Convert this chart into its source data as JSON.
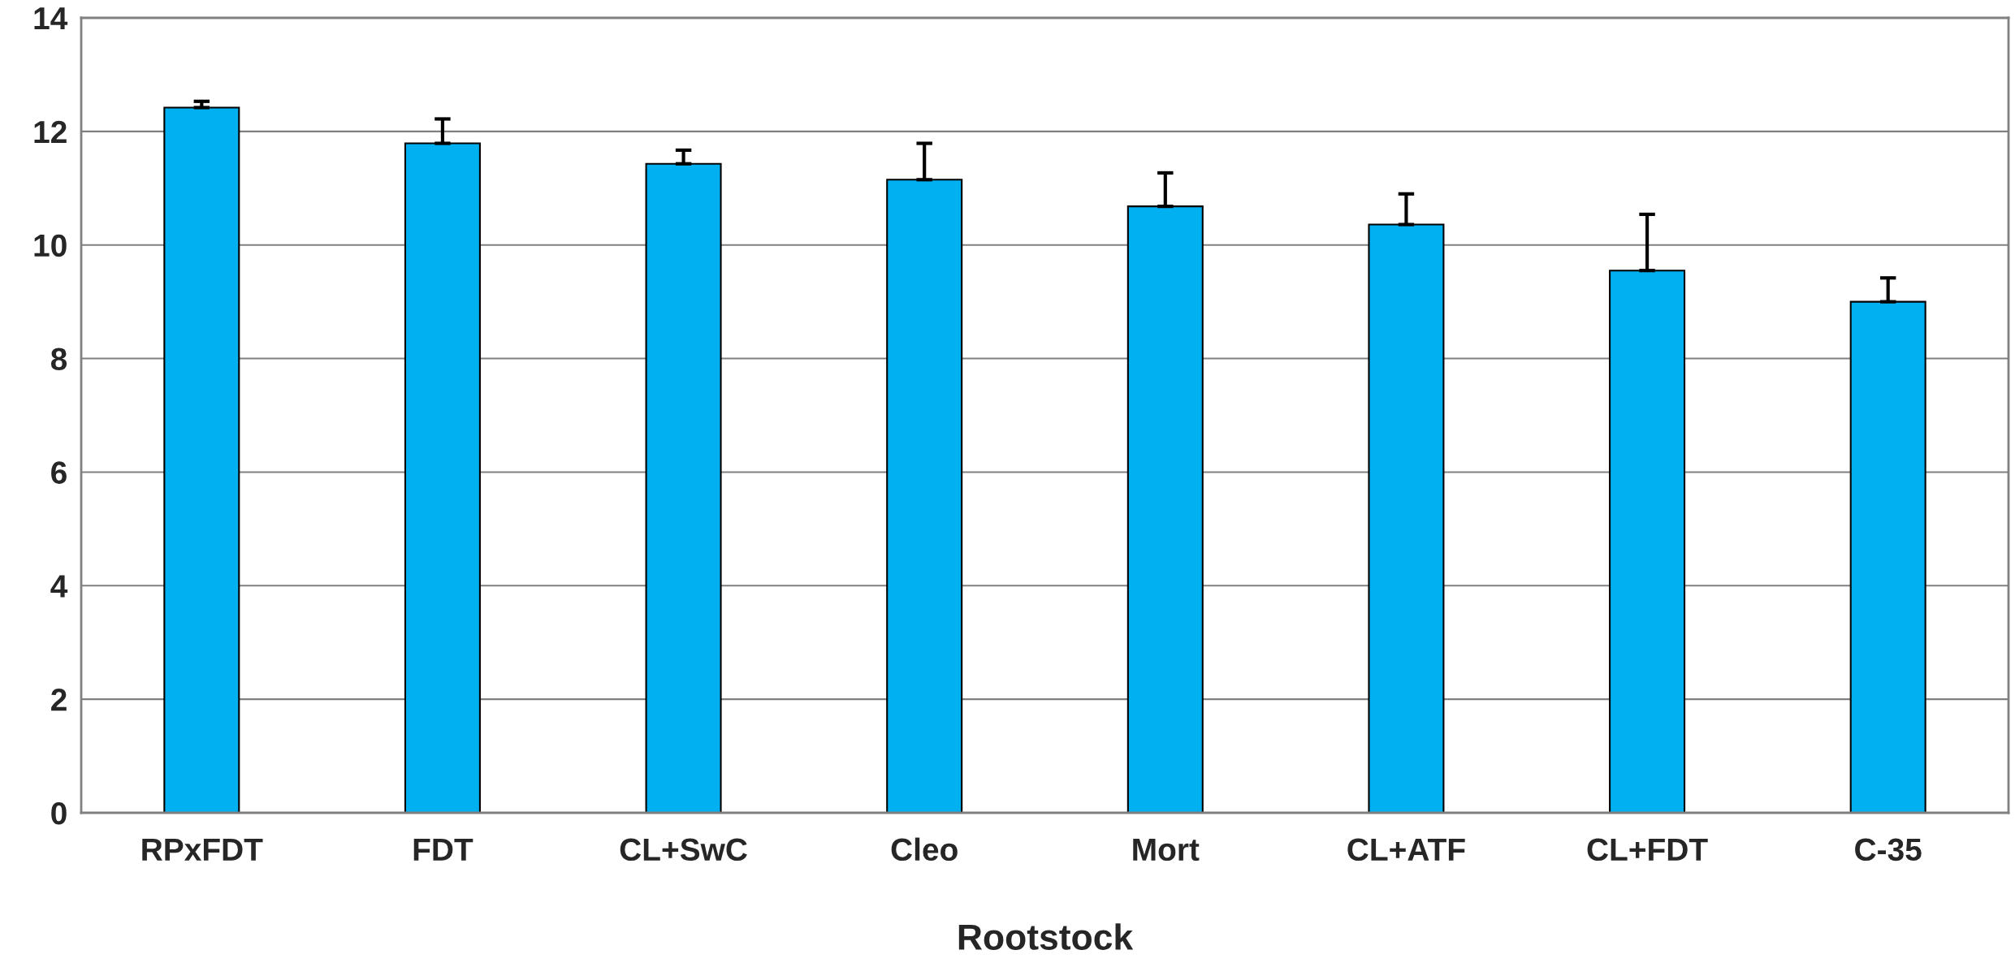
{
  "chart_data": {
    "type": "bar",
    "xlabel": "Rootstock",
    "categories": [
      "RPxFDT",
      "FDT",
      "CL+SwC",
      "Cleo",
      "Mort",
      "CL+ATF",
      "CL+FDT",
      "C-35"
    ],
    "values": [
      12.42,
      11.79,
      11.43,
      11.15,
      10.68,
      10.36,
      9.55,
      9.0
    ],
    "errors": [
      [
        12.42,
        12.53
      ],
      [
        11.79,
        12.22
      ],
      [
        11.43,
        11.67
      ],
      [
        11.15,
        11.79
      ],
      [
        10.68,
        11.27
      ],
      [
        10.36,
        10.9
      ],
      [
        9.55,
        10.54
      ],
      [
        9.0,
        9.42
      ]
    ],
    "color": "#00b0f0",
    "ylim": [
      0,
      14
    ],
    "yticks": [
      0,
      2,
      4,
      6,
      8,
      10,
      12,
      14
    ],
    "grid": "y"
  }
}
